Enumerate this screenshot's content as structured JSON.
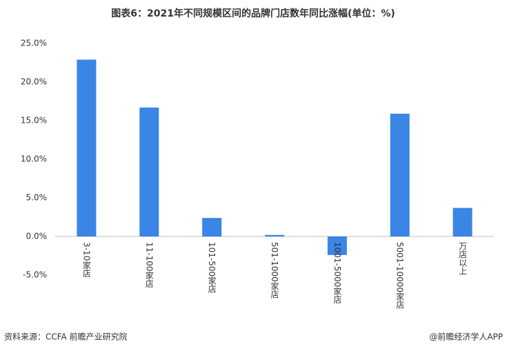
{
  "chart_data": {
    "type": "bar",
    "title": "图表6：2021年不同规模区间的品牌门店数年同比涨幅(单位：%)",
    "categories": [
      "3-10家店",
      "11-100家店",
      "101-500家店",
      "501-1000家店",
      "1001-5000家店",
      "5001-10000家店",
      "万店以上"
    ],
    "values": [
      22.9,
      16.7,
      2.4,
      0.2,
      -2.4,
      15.9,
      3.7
    ],
    "color": "#3a85e6",
    "ylim": [
      -5,
      25
    ],
    "yticks": [
      {
        "value": -5,
        "label": "-5.0%"
      },
      {
        "value": 0,
        "label": "0.0%"
      },
      {
        "value": 5,
        "label": "5.0%"
      },
      {
        "value": 10,
        "label": "10.0%"
      },
      {
        "value": 15,
        "label": "15.0%"
      },
      {
        "value": 20,
        "label": "20.0%"
      },
      {
        "value": 25,
        "label": "25.0%"
      }
    ],
    "source": "资料来源：CCFA 前瞻产业研究院",
    "credit": "@前瞻经济学人APP"
  }
}
